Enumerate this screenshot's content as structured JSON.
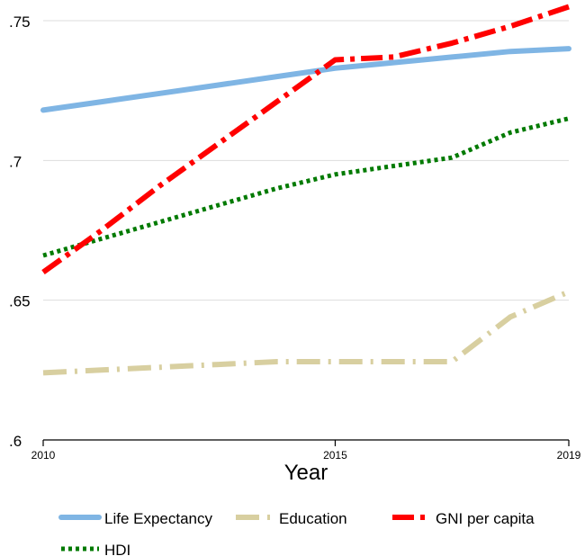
{
  "chart_data": {
    "type": "line",
    "xlabel": "Year",
    "ylabel": "",
    "xlim": [
      2010,
      2019
    ],
    "ylim": [
      0.6,
      0.755
    ],
    "x_ticks": [
      {
        "value": 2010,
        "label": "2010"
      },
      {
        "value": 2015,
        "label": "2015"
      },
      {
        "value": 2019,
        "label": "2019"
      }
    ],
    "y_ticks": [
      {
        "value": 0.6,
        "label": ".6"
      },
      {
        "value": 0.65,
        "label": ".65"
      },
      {
        "value": 0.7,
        "label": ".7"
      },
      {
        "value": 0.75,
        "label": ".75"
      }
    ],
    "grid": true,
    "legend_position": "bottom",
    "x": [
      2010,
      2011,
      2012,
      2013,
      2014,
      2015,
      2016,
      2017,
      2018,
      2019
    ],
    "series": [
      {
        "name": "Life Expectancy",
        "color": "#7fb5e4",
        "style": "solid",
        "values": [
          0.718,
          0.721,
          0.724,
          0.727,
          0.73,
          0.733,
          0.735,
          0.737,
          0.739,
          0.74
        ]
      },
      {
        "name": "Education",
        "color": "#d8cfa0",
        "style": "dash",
        "values": [
          0.624,
          0.625,
          0.626,
          0.627,
          0.628,
          0.628,
          0.628,
          0.628,
          0.644,
          0.653
        ]
      },
      {
        "name": "GNI per capita",
        "color": "#ff0000",
        "style": "dashdot",
        "values": [
          0.66,
          0.675,
          0.691,
          0.706,
          0.721,
          0.736,
          0.737,
          0.742,
          0.748,
          0.755
        ]
      },
      {
        "name": "HDI",
        "color": "#007a00",
        "style": "dot",
        "values": [
          0.666,
          0.672,
          0.678,
          0.684,
          0.69,
          0.695,
          0.698,
          0.701,
          0.71,
          0.715
        ]
      }
    ]
  }
}
